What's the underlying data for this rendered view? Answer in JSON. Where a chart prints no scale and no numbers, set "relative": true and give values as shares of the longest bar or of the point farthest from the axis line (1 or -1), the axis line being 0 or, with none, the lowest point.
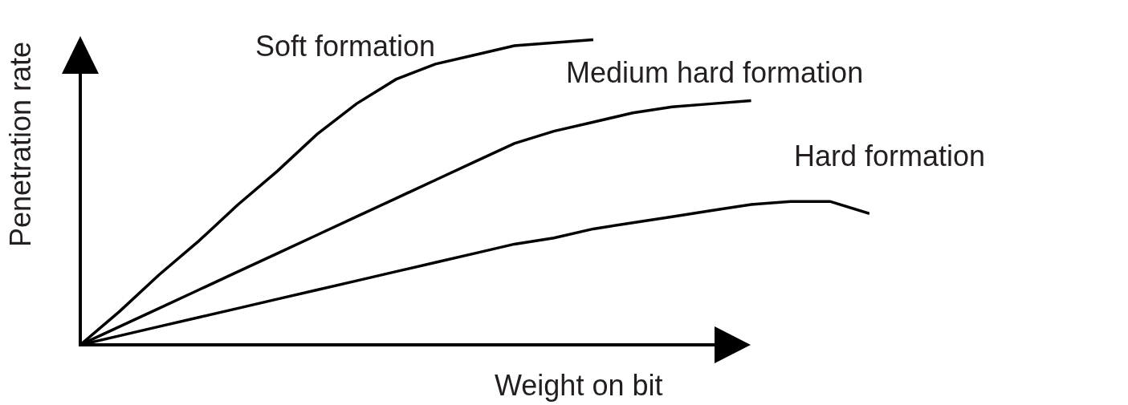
{
  "chart_data": {
    "type": "line",
    "relative": true,
    "xlabel": "Weight on bit",
    "ylabel": "Penetration rate",
    "categories": [
      null,
      null,
      null,
      null,
      null,
      null,
      null,
      null,
      null,
      null,
      null,
      null,
      null,
      null,
      null,
      null,
      null,
      null,
      null,
      null,
      null
    ],
    "series": [
      {
        "name": "Soft formation",
        "color": "#000000",
        "values": [
          0,
          0.11,
          0.23,
          0.34,
          0.46,
          0.57,
          0.69,
          0.79,
          0.87,
          0.92,
          0.95,
          0.98,
          0.99,
          1.0,
          null,
          null,
          null,
          null,
          null,
          null,
          null
        ]
      },
      {
        "name": "Medium hard formation",
        "color": "#000000",
        "values": [
          0,
          0.06,
          0.12,
          0.18,
          0.24,
          0.3,
          0.36,
          0.42,
          0.48,
          0.54,
          0.6,
          0.66,
          0.7,
          0.73,
          0.76,
          0.78,
          0.79,
          0.8,
          null,
          null,
          null
        ]
      },
      {
        "name": "Hard formation",
        "color": "#000000",
        "values": [
          0,
          0.03,
          0.06,
          0.09,
          0.12,
          0.15,
          0.18,
          0.21,
          0.24,
          0.27,
          0.3,
          0.33,
          0.35,
          0.38,
          0.4,
          0.42,
          0.44,
          0.46,
          0.47,
          0.47,
          0.43
        ]
      }
    ]
  }
}
